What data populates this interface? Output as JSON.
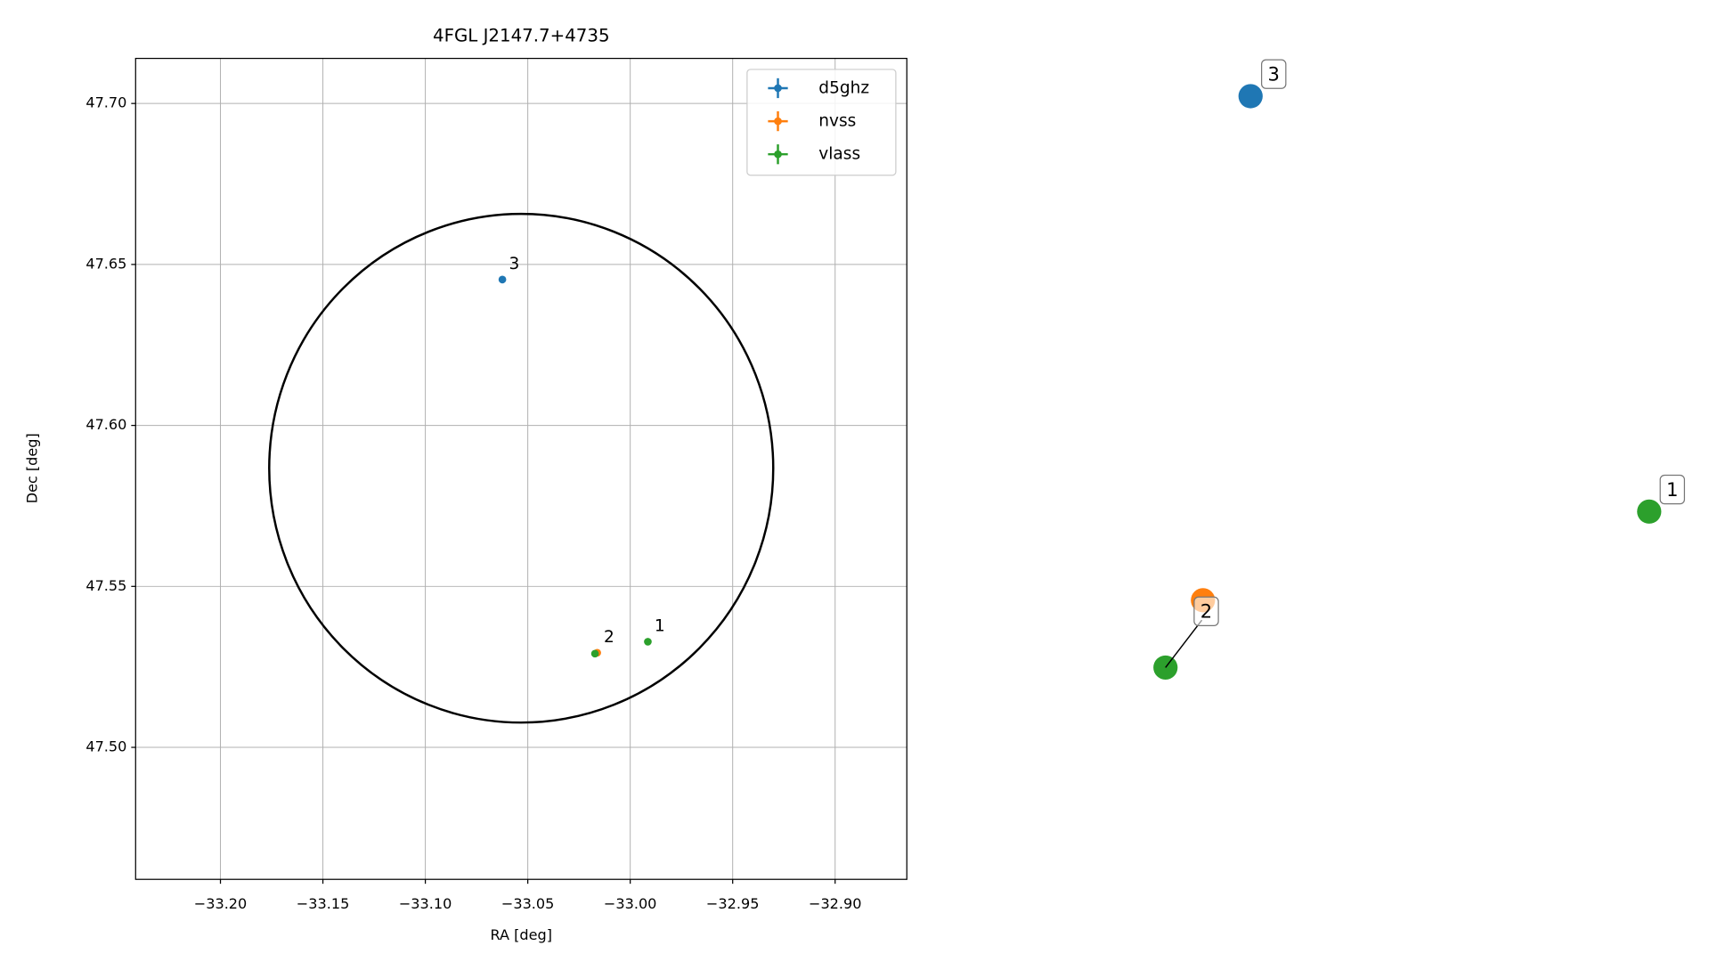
{
  "chart_data": [
    {
      "type": "scatter",
      "title": "4FGL J2147.7+4735",
      "xlabel": "RA [deg]",
      "ylabel": "Dec [deg]",
      "xlim": [
        -33.2414,
        -32.865
      ],
      "ylim": [
        47.459,
        47.714
      ],
      "xticks": [
        {
          "value": -33.2,
          "label": "−33.20"
        },
        {
          "value": -33.15,
          "label": "−33.15"
        },
        {
          "value": -33.1,
          "label": "−33.10"
        },
        {
          "value": -33.05,
          "label": "−33.05"
        },
        {
          "value": -33.0,
          "label": "−33.00"
        },
        {
          "value": -32.95,
          "label": "−32.95"
        },
        {
          "value": -32.9,
          "label": "−32.90"
        }
      ],
      "yticks": [
        {
          "value": 47.5,
          "label": "47.50"
        },
        {
          "value": 47.55,
          "label": "47.55"
        },
        {
          "value": 47.6,
          "label": "47.60"
        },
        {
          "value": 47.65,
          "label": "47.65"
        },
        {
          "value": 47.7,
          "label": "47.70"
        }
      ],
      "grid": true,
      "legend": "upper right",
      "region": {
        "x": -33.0532,
        "y": 47.5867,
        "width": 0.246,
        "height": 0.158,
        "color": "#000000"
      },
      "series": [
        {
          "name": "d5ghz",
          "color": "#1f77b4",
          "x": [
            -33.0624
          ],
          "y": [
            47.6453
          ],
          "labels": [
            "3"
          ]
        },
        {
          "name": "nvss",
          "color": "#ff7f0e",
          "x": [
            -33.0161
          ],
          "y": [
            47.5294
          ],
          "labels": [
            "2"
          ]
        },
        {
          "name": "vlass",
          "color": "#2ca02c",
          "x": [
            -33.0172,
            -32.9914
          ],
          "y": [
            47.5291,
            47.5328
          ],
          "labels": [
            null,
            "1"
          ]
        }
      ]
    },
    {
      "type": "scatter",
      "xlim": [
        0,
        1
      ],
      "ylim": [
        0,
        1
      ],
      "series": [
        {
          "color": "#1f77b4",
          "x": [
            0.25
          ],
          "y": [
            0.954
          ],
          "labels": [
            "3"
          ]
        },
        {
          "color": "#ff7f0e",
          "x": [
            0.17
          ],
          "y": [
            0.34
          ],
          "labels": [
            null
          ]
        },
        {
          "color": "#2ca02c",
          "x": [
            0.107,
            0.92
          ],
          "y": [
            0.258,
            0.448
          ],
          "labels": [
            "2",
            "1"
          ]
        }
      ]
    }
  ]
}
